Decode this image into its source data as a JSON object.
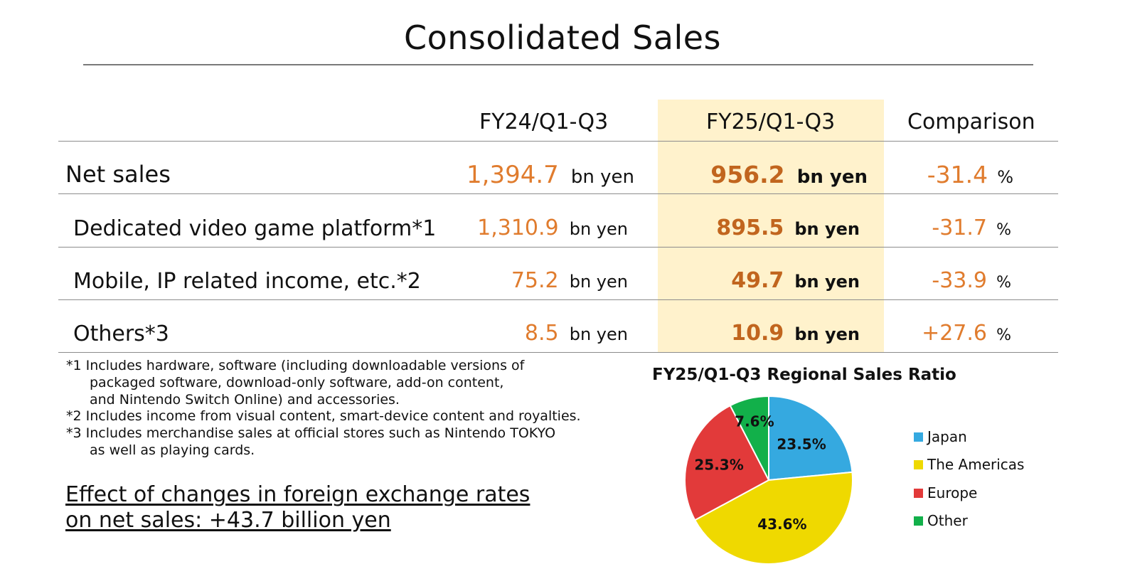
{
  "title": "Consolidated Sales",
  "table": {
    "headers": [
      "FY24/Q1-Q3",
      "FY25/Q1-Q3",
      "Comparison"
    ],
    "rows": [
      {
        "label": "Net sales",
        "fy24": "1,394.7",
        "fy25": "956.2",
        "change": "-31.4"
      },
      {
        "label": "Dedicated video game platform*1",
        "fy24": "1,310.9",
        "fy25": "895.5",
        "change": "-31.7"
      },
      {
        "label": "Mobile, IP related income, etc.*2",
        "fy24": "75.2",
        "fy25": "49.7",
        "change": "-33.9"
      },
      {
        "label": "Others*3",
        "fy24": "8.5",
        "fy25": "10.9",
        "change": "+27.6"
      }
    ],
    "unit": "bn yen",
    "pct_unit": "%"
  },
  "notes": {
    "n1_l1": "*1 Includes hardware, software (including downloadable versions of",
    "n1_l2": "packaged software, download-only software, add-on content,",
    "n1_l3": "and Nintendo Switch Online) and accessories.",
    "n2": "*2 Includes income from visual content, smart-device content and royalties.",
    "n3_l1": "*3 Includes merchandise sales at official stores such as Nintendo TOKYO",
    "n3_l2": "as well as playing cards."
  },
  "fx_effect": {
    "line1": "Effect of changes in foreign exchange rates",
    "line2": "on net sales: +43.7 billion yen"
  },
  "chart_data": {
    "type": "pie",
    "title": "FY25/Q1-Q3 Regional Sales Ratio",
    "categories": [
      "Japan",
      "The Americas",
      "Europe",
      "Other"
    ],
    "values": [
      23.5,
      43.6,
      25.3,
      7.6
    ],
    "labels": [
      "23.5%",
      "43.6%",
      "25.3%",
      "7.6%"
    ],
    "colors": [
      "#35a9e0",
      "#efd900",
      "#e23a3a",
      "#12b04a"
    ],
    "legend_position": "right"
  },
  "colors": {
    "highlight": "#fff2cc",
    "value_orange": "#e07c2e",
    "value_bold": "#c1651e"
  }
}
